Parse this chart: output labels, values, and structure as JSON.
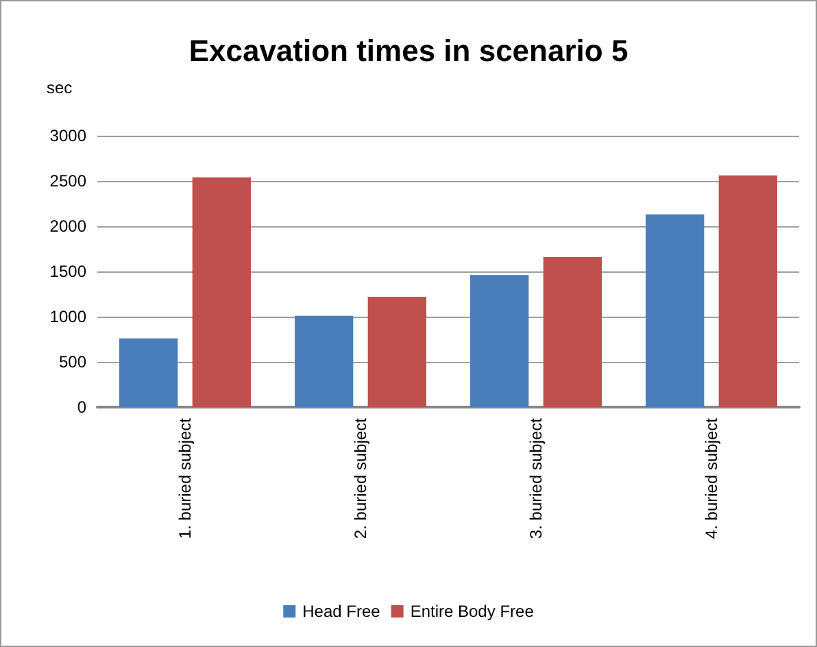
{
  "chart_data": {
    "type": "bar",
    "title": "Excavation times in scenario 5",
    "ylabel": "sec",
    "categories": [
      "1. buried subject",
      "2. buried subject",
      "3. buried subject",
      "4. buried subject"
    ],
    "series": [
      {
        "name": "Head Free",
        "color": "#4a7ebb",
        "values": [
          760,
          1010,
          1460,
          2130
        ]
      },
      {
        "name": "Entire Body Free",
        "color": "#c0504d",
        "values": [
          2540,
          1220,
          1660,
          2560
        ]
      }
    ],
    "ylim": [
      0,
      3000
    ],
    "yticks": [
      0,
      500,
      1000,
      1500,
      2000,
      2500,
      3000
    ],
    "grid": "y",
    "legend": "bottom"
  }
}
